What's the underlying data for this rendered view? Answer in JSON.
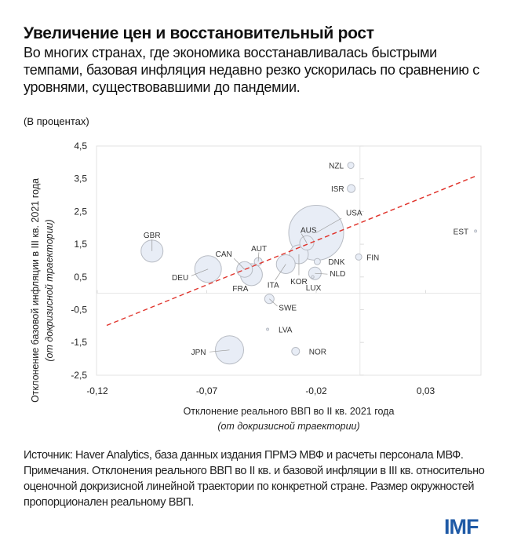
{
  "header": {
    "title": "Увеличение цен и восстановительный рост",
    "subtitle": "Во многих странах, где экономика восстанавливалась быстрыми темпами, базовая инфляция недавно резко ускорилась по сравнению с уровнями, существовавшими до пандемии.",
    "units": "(В процентах)"
  },
  "chart_data": {
    "type": "scatter",
    "subtype": "bubble",
    "xlabel": "Отклонение реального ВВП во II кв. 2021 года",
    "xlabel_sub": "(от докризисной траектории)",
    "ylabel": "Отклонение базовой инфляции в III кв. 2021 года",
    "ylabel_sub": "(от докризисной траектории)",
    "xlim": [
      -0.12,
      0.055
    ],
    "ylim": [
      -2.5,
      4.5
    ],
    "x_ticks": [
      "-0,12",
      "-0,07",
      "-0,02",
      "0,03"
    ],
    "x_tick_values": [
      -0.12,
      -0.07,
      -0.02,
      0.03
    ],
    "y_ticks": [
      "4,5",
      "3,5",
      "2,5",
      "1,5",
      "0,5",
      "-0,5",
      "-1,5",
      "-2,5"
    ],
    "y_tick_values": [
      4.5,
      3.5,
      2.5,
      1.5,
      0.5,
      -0.5,
      -1.5,
      -2.5
    ],
    "grid": false,
    "bubble_color": "#e8edf6",
    "bubble_stroke": "#b8bcc4",
    "trendline_color": "#e0332b",
    "trendline": {
      "x": [
        -0.1157,
        0.0532
      ],
      "y": [
        -0.98,
        3.59
      ]
    },
    "points": [
      {
        "label": "NZL",
        "x": -0.0042,
        "y": 3.91,
        "size": 16
      },
      {
        "label": "ISR",
        "x": -0.004,
        "y": 3.2,
        "size": 25
      },
      {
        "label": "USA",
        "x": -0.02,
        "y": 1.85,
        "size": 1225
      },
      {
        "label": "AUS",
        "x": -0.0243,
        "y": 1.54,
        "size": 81
      },
      {
        "label": "EST",
        "x": 0.0528,
        "y": 1.9,
        "size": 2
      },
      {
        "label": "GBR",
        "x": -0.095,
        "y": 1.29,
        "size": 196
      },
      {
        "label": "FIN",
        "x": -0.0006,
        "y": 1.11,
        "size": 16
      },
      {
        "label": "DNK",
        "x": -0.0195,
        "y": 0.97,
        "size": 16
      },
      {
        "label": "KOR",
        "x": -0.0279,
        "y": 1.19,
        "size": 144
      },
      {
        "label": "ITA",
        "x": -0.0339,
        "y": 0.89,
        "size": 144
      },
      {
        "label": "NLD",
        "x": -0.0206,
        "y": 0.61,
        "size": 64
      },
      {
        "label": "LUX",
        "x": -0.0216,
        "y": 0.5,
        "size": 3
      },
      {
        "label": "DEU",
        "x": -0.0694,
        "y": 0.74,
        "size": 289
      },
      {
        "label": "CAN",
        "x": -0.0527,
        "y": 0.73,
        "size": 100
      },
      {
        "label": "FRA",
        "x": -0.0496,
        "y": 0.57,
        "size": 196
      },
      {
        "label": "AUT",
        "x": -0.0465,
        "y": 0.97,
        "size": 25
      },
      {
        "label": "SWE",
        "x": -0.0414,
        "y": -0.17,
        "size": 36
      },
      {
        "label": "LVA",
        "x": -0.0422,
        "y": -1.1,
        "size": 2
      },
      {
        "label": "JPN",
        "x": -0.0596,
        "y": -1.73,
        "size": 324
      },
      {
        "label": "NOR",
        "x": -0.0294,
        "y": -1.77,
        "size": 25
      }
    ]
  },
  "notes": {
    "source": "Источник: Haver Analytics, база данных издания ПРМЭ МВФ и расчеты персонала МВФ.",
    "note": "Примечания. Отклонения реального ВВП во II кв. и базовой инфляции в III кв. относительно оценочной докризисной линейной траектории по конкретной стране. Размер окружностей пропорционален реальному ВВП."
  },
  "logo": "IMF",
  "brand_color": "#1f5aa6"
}
